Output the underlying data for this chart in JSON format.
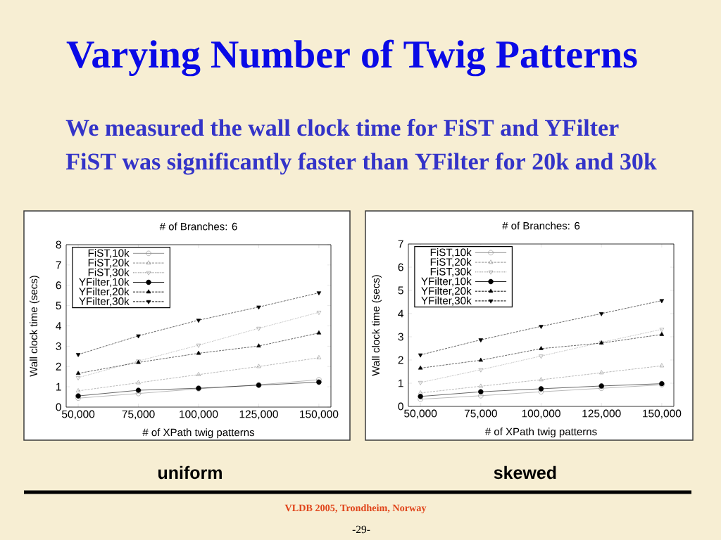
{
  "chart_data": [
    {
      "type": "other",
      "title": "Varying Number of Twig Patterns",
      "annotations": [
        "We measured the wall clock time for FiST and YFilter",
        "FiST was significantly faster than YFilter for 20k and 30k",
        "VLDB 2005, Trondheim, Norway",
        "-29-"
      ]
    },
    {
      "type": "line",
      "title": "# of Branches: 6",
      "xlabel": "# of XPath twig patterns",
      "ylabel": "Wall clock time (secs)",
      "annotations": [
        "uniform"
      ],
      "x": [
        50000,
        75000,
        100000,
        125000,
        150000
      ],
      "xlim": [
        45000,
        155000
      ],
      "xticks": [
        {
          "value": 50000,
          "label": "50,000"
        },
        {
          "value": 75000,
          "label": "75,000"
        },
        {
          "value": 100000,
          "label": "100,000"
        },
        {
          "value": 125000,
          "label": "125,000"
        },
        {
          "value": 150000,
          "label": "150,000"
        }
      ],
      "ylim": [
        0,
        8
      ],
      "yticks": [
        0,
        1,
        2,
        3,
        4,
        5,
        6,
        7,
        8
      ],
      "legend": "top left",
      "series": [
        {
          "name": "FiST,10k",
          "color": "#8c8c8c",
          "marker": "circle-open",
          "line_style": "solid",
          "values": [
            0.44,
            0.67,
            0.9,
            1.1,
            1.35
          ]
        },
        {
          "name": "FiST,20k",
          "color": "#8c8c8c",
          "marker": "triangle-open",
          "line_style": "dashed",
          "values": [
            0.8,
            1.2,
            1.6,
            2.0,
            2.43
          ]
        },
        {
          "name": "FiST,30k",
          "color": "#8c8c8c",
          "marker": "triangle-down-open",
          "line_style": "dotted",
          "values": [
            1.45,
            2.27,
            3.05,
            3.88,
            4.67
          ]
        },
        {
          "name": "YFilter,10k",
          "color": "#000000",
          "marker": "circle",
          "line_style": "solid",
          "values": [
            0.55,
            0.83,
            0.93,
            1.08,
            1.23
          ]
        },
        {
          "name": "YFilter,20k",
          "color": "#000000",
          "marker": "triangle",
          "line_style": "dashed",
          "values": [
            1.66,
            2.2,
            2.65,
            3.01,
            3.65
          ]
        },
        {
          "name": "YFilter,30k",
          "color": "#000000",
          "marker": "triangle-down",
          "line_style": "dashed",
          "values": [
            2.59,
            3.51,
            4.28,
            4.93,
            5.63
          ]
        }
      ]
    },
    {
      "type": "line",
      "title": "# of Branches: 6",
      "xlabel": "# of XPath twig patterns",
      "ylabel": "Wall clock time (secs)",
      "annotations": [
        "skewed"
      ],
      "x": [
        50000,
        75000,
        100000,
        125000,
        150000
      ],
      "xlim": [
        45000,
        155000
      ],
      "xticks": [
        {
          "value": 50000,
          "label": "50,000"
        },
        {
          "value": 75000,
          "label": "75,000"
        },
        {
          "value": 100000,
          "label": "100,000"
        },
        {
          "value": 125000,
          "label": "125,000"
        },
        {
          "value": 150000,
          "label": "150,000"
        }
      ],
      "ylim": [
        0,
        7
      ],
      "yticks": [
        0,
        1,
        2,
        3,
        4,
        5,
        6,
        7
      ],
      "legend": "top left",
      "series": [
        {
          "name": "FiST,10k",
          "color": "#8c8c8c",
          "marker": "circle-open",
          "line_style": "solid",
          "values": [
            0.31,
            0.46,
            0.63,
            0.78,
            0.93
          ]
        },
        {
          "name": "FiST,20k",
          "color": "#8c8c8c",
          "marker": "triangle-open",
          "line_style": "dashed",
          "values": [
            0.58,
            0.87,
            1.15,
            1.45,
            1.75
          ]
        },
        {
          "name": "FiST,30k",
          "color": "#8c8c8c",
          "marker": "triangle-down-open",
          "line_style": "dotted",
          "values": [
            1.03,
            1.58,
            2.17,
            2.76,
            3.32
          ]
        },
        {
          "name": "YFilter,10k",
          "color": "#000000",
          "marker": "circle",
          "line_style": "solid",
          "values": [
            0.43,
            0.63,
            0.76,
            0.88,
            0.98
          ]
        },
        {
          "name": "YFilter,20k",
          "color": "#000000",
          "marker": "triangle",
          "line_style": "dashed",
          "values": [
            1.65,
            1.99,
            2.49,
            2.73,
            3.1
          ]
        },
        {
          "name": "YFilter,30k",
          "color": "#000000",
          "marker": "triangle-down",
          "line_style": "dashed",
          "values": [
            2.22,
            2.87,
            3.45,
            4.0,
            4.56
          ]
        }
      ]
    }
  ]
}
